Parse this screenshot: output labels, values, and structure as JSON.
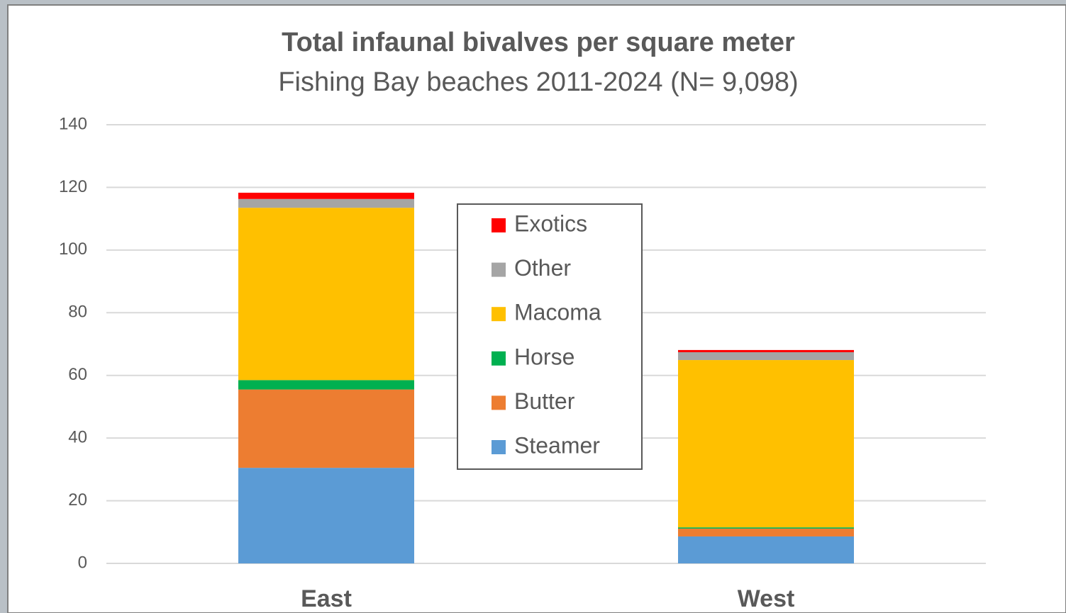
{
  "chart_data": {
    "type": "stacked_bar",
    "title": "Total infaunal bivalves per square meter",
    "subtitle": "Fishing Bay beaches 2011-2024 (N= 9,098)",
    "categories": [
      "East",
      "West"
    ],
    "series": [
      {
        "name": "Steamer",
        "color": "#5b9bd5",
        "values": [
          30.5,
          8.6
        ]
      },
      {
        "name": "Butter",
        "color": "#ed7d31",
        "values": [
          25,
          2.5
        ]
      },
      {
        "name": "Horse",
        "color": "#00b050",
        "values": [
          3,
          0.4
        ]
      },
      {
        "name": "Macoma",
        "color": "#ffc000",
        "values": [
          55,
          53.4
        ]
      },
      {
        "name": "Other",
        "color": "#a5a5a5",
        "values": [
          2.8,
          2.5
        ]
      },
      {
        "name": "Exotics",
        "color": "#ff0000",
        "values": [
          2,
          0.7
        ]
      }
    ],
    "ylim": [
      0,
      140
    ],
    "yticks": [
      0,
      20,
      40,
      60,
      80,
      100,
      120,
      140
    ],
    "grid": true
  }
}
